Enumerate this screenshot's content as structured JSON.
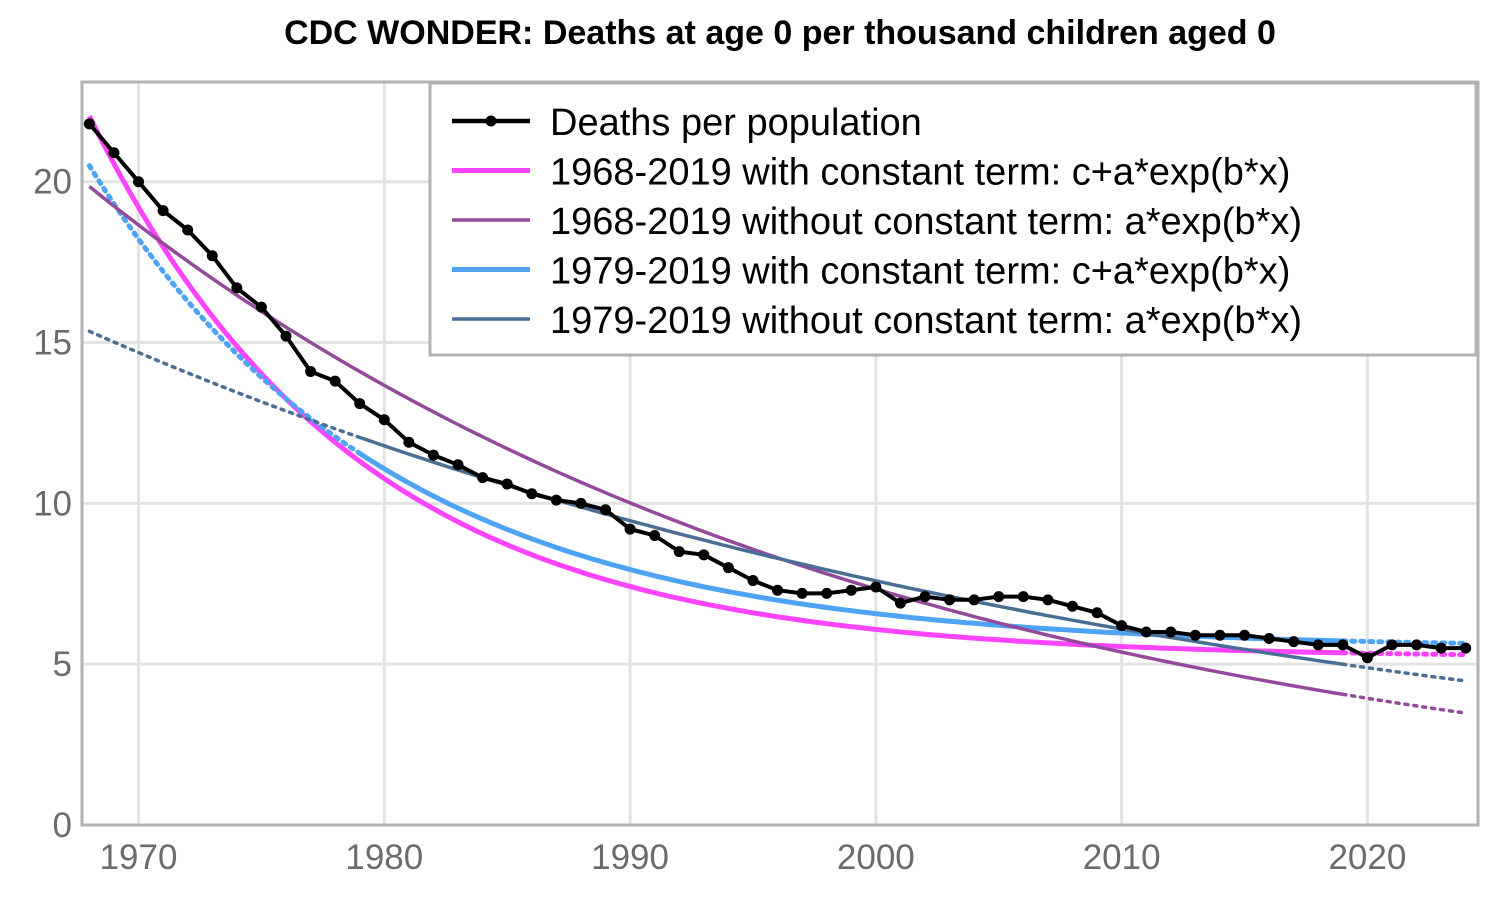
{
  "chart_data": {
    "type": "line",
    "title": "CDC WONDER: Deaths at age 0 per thousand children aged 0",
    "xlabel": "",
    "ylabel": "",
    "xlim": [
      1967.7,
      2024.5
    ],
    "ylim": [
      0,
      23.1
    ],
    "x_ticks": [
      1970,
      1980,
      1990,
      2000,
      2010,
      2020
    ],
    "y_ticks": [
      0,
      5,
      10,
      15,
      20
    ],
    "grid": true,
    "legend_position": "top-right",
    "series": [
      {
        "name": "Deaths per population",
        "color": "#000000",
        "style": "line-with-points",
        "x": [
          1968,
          1969,
          1970,
          1971,
          1972,
          1973,
          1974,
          1975,
          1976,
          1977,
          1978,
          1979,
          1980,
          1981,
          1982,
          1983,
          1984,
          1985,
          1986,
          1987,
          1988,
          1989,
          1990,
          1991,
          1992,
          1993,
          1994,
          1995,
          1996,
          1997,
          1998,
          1999,
          2000,
          2001,
          2002,
          2003,
          2004,
          2005,
          2006,
          2007,
          2008,
          2009,
          2010,
          2011,
          2012,
          2013,
          2014,
          2015,
          2016,
          2017,
          2018,
          2019,
          2020,
          2021,
          2022,
          2023,
          2024
        ],
        "y": [
          21.8,
          20.9,
          20.0,
          19.1,
          18.5,
          17.7,
          16.7,
          16.1,
          15.2,
          14.1,
          13.8,
          13.1,
          12.6,
          11.9,
          11.5,
          11.2,
          10.8,
          10.6,
          10.3,
          10.1,
          10.0,
          9.8,
          9.2,
          9.0,
          8.5,
          8.4,
          8.0,
          7.6,
          7.3,
          7.2,
          7.2,
          7.3,
          7.4,
          6.9,
          7.1,
          7.0,
          7.0,
          7.1,
          7.1,
          7.0,
          6.8,
          6.6,
          6.2,
          6.0,
          6.0,
          5.9,
          5.9,
          5.9,
          5.8,
          5.7,
          5.6,
          5.6,
          5.2,
          5.6,
          5.6,
          5.5,
          5.5
        ]
      },
      {
        "name": "1968-2019 with constant term: c+a*exp(b*x)",
        "color": "#ff44ff",
        "style": "fit",
        "fit": {
          "a": 16.84,
          "b": -0.0922,
          "c": 5.2,
          "x0": 1968
        },
        "solid_range": [
          1968,
          2019
        ],
        "dotted_ranges": [
          [
            2019,
            2024
          ]
        ]
      },
      {
        "name": "1968-2019 without constant term: a*exp(b*x)",
        "color": "#934a9b",
        "style": "fit",
        "fit": {
          "a": 19.85,
          "b": -0.0311,
          "c": 0,
          "x0": 1968
        },
        "solid_range": [
          1968,
          2019
        ],
        "dotted_ranges": [
          [
            2019,
            2024
          ]
        ]
      },
      {
        "name": "1979-2019 with constant term: c+a*exp(b*x)",
        "color": "#4ea3f5",
        "style": "fit",
        "fit": {
          "a": 15.0,
          "b": -0.0825,
          "c": 5.5,
          "x0": 1968
        },
        "solid_range": [
          1979,
          2019
        ],
        "dotted_ranges": [
          [
            1968,
            1979
          ],
          [
            2019,
            2024
          ]
        ]
      },
      {
        "name": "1979-2019 without constant term: a*exp(b*x)",
        "color": "#4a6f94",
        "style": "fit",
        "fit": {
          "a": 15.35,
          "b": -0.022,
          "c": 0,
          "x0": 1968
        },
        "solid_range": [
          1979,
          2019
        ],
        "dotted_ranges": [
          [
            1968,
            1979
          ],
          [
            2019,
            2024
          ]
        ]
      }
    ]
  }
}
